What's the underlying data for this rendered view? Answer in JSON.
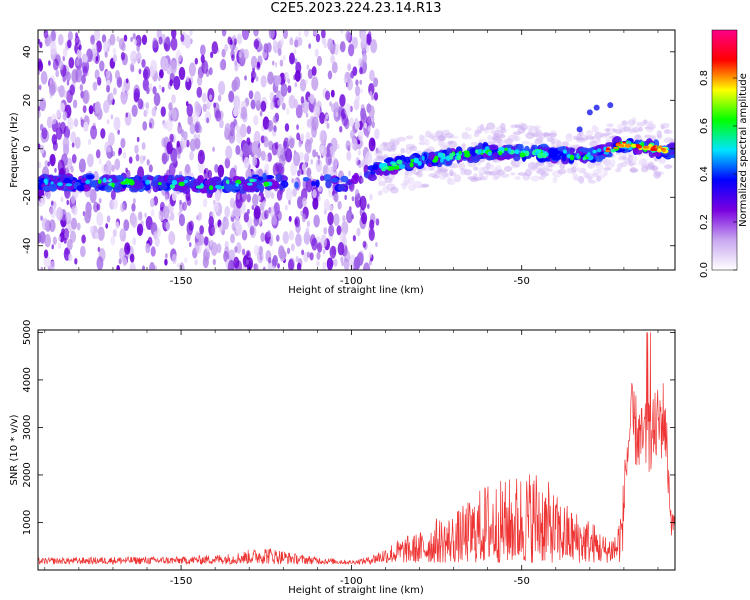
{
  "title": "C2E5.2023.224.23.14.R13",
  "chart_data": [
    {
      "type": "heatmap",
      "xlabel": "Height of straight line (km)",
      "ylabel": "Frequency (Hz)",
      "xlim": [
        -192,
        -5
      ],
      "ylim": [
        -50,
        49
      ],
      "x_ticks": [
        -150,
        -100,
        -50
      ],
      "y_ticks": [
        -40,
        -20,
        0,
        20,
        40
      ],
      "ridge": {
        "x": [
          -192,
          -180,
          -160,
          -140,
          -125,
          -100,
          -92,
          -80,
          -60,
          -40,
          -30,
          -20,
          -10,
          -5
        ],
        "y": [
          -14,
          -14,
          -14,
          -15,
          -14,
          -14,
          -8,
          -5,
          -1,
          -2,
          -3,
          2,
          0,
          -1
        ]
      },
      "colorbar": {
        "label": "Normalized spectral amplitude",
        "range": [
          0,
          1
        ],
        "ticks": [
          0.0,
          0.2,
          0.4,
          0.6,
          0.8
        ],
        "colors": [
          "#ffffff",
          "#c8a8f0",
          "#7a00e0",
          "#0000ff",
          "#00e5ff",
          "#00ff00",
          "#ffff00",
          "#ff0000",
          "#ff0088"
        ]
      }
    },
    {
      "type": "line",
      "xlabel": "Height of straight line (km)",
      "ylabel": "SNR (10 * v/v)",
      "xlim": [
        -192,
        -5
      ],
      "ylim": [
        0,
        5050
      ],
      "x_ticks": [
        -150,
        -100,
        -50
      ],
      "y_ticks": [
        1000,
        2000,
        3000,
        4000,
        5000
      ],
      "color": "#ee3333",
      "envelope": {
        "x": [
          -192,
          -170,
          -150,
          -135,
          -125,
          -115,
          -100,
          -95,
          -90,
          -85,
          -80,
          -75,
          -70,
          -65,
          -60,
          -55,
          -50,
          -45,
          -40,
          -35,
          -30,
          -25,
          -22,
          -20,
          -18,
          -15,
          -12,
          -10,
          -8,
          -6,
          -5
        ],
        "y": [
          250,
          280,
          280,
          350,
          500,
          320,
          200,
          280,
          500,
          700,
          800,
          1100,
          1200,
          1500,
          1900,
          1900,
          2100,
          2200,
          1600,
          1300,
          1100,
          700,
          900,
          2000,
          3800,
          3300,
          3400,
          3700,
          3900,
          1100,
          1300
        ]
      }
    }
  ]
}
